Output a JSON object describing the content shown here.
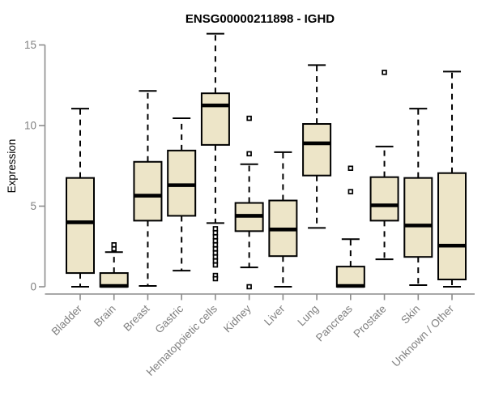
{
  "colors": {
    "box_fill": "#EDE5C8",
    "box_border": "#000000",
    "median": "#000000",
    "whisker": "#000000",
    "outlier": "#000000",
    "axis_line": "#8C8C8C",
    "axis_text": "#808080",
    "title_text": "#000000",
    "background": "#FFFFFF"
  },
  "chart_data": {
    "type": "boxplot",
    "title": "ENSG00000211898 - IGHD",
    "xlabel": "",
    "ylabel": "Expression",
    "ylim": [
      0,
      15
    ],
    "yticks": [
      0,
      5,
      10,
      15
    ],
    "grid": false,
    "legend": "none",
    "categories": [
      "Bladder",
      "Brain",
      "Breast",
      "Gastric",
      "Hematopoietic cells",
      "Kidney",
      "Liver",
      "Lung",
      "Pancreas",
      "Prostate",
      "Skin",
      "Unknown / Other"
    ],
    "boxes": [
      {
        "category": "Bladder",
        "whisker_low": 0,
        "q1": 0.85,
        "median": 4.0,
        "q3": 6.75,
        "whisker_high": 11.05,
        "outliers": []
      },
      {
        "category": "Brain",
        "whisker_low": 0,
        "q1": 0,
        "median": 0.05,
        "q3": 0.85,
        "whisker_high": 2.15,
        "outliers": [
          2.35,
          2.6
        ]
      },
      {
        "category": "Breast",
        "whisker_low": 0.05,
        "q1": 4.1,
        "median": 5.65,
        "q3": 7.75,
        "whisker_high": 12.15,
        "outliers": []
      },
      {
        "category": "Gastric",
        "whisker_low": 1.0,
        "q1": 4.4,
        "median": 6.3,
        "q3": 8.45,
        "whisker_high": 10.45,
        "outliers": []
      },
      {
        "category": "Hematopoietic cells",
        "whisker_low": 3.95,
        "q1": 8.8,
        "median": 11.25,
        "q3": 12.0,
        "whisker_high": 15.7,
        "outliers": [
          3.6,
          3.35,
          3.1,
          2.85,
          2.6,
          2.35,
          2.1,
          1.85,
          1.6,
          1.35,
          0.7,
          0.5
        ]
      },
      {
        "category": "Kidney",
        "whisker_low": 1.2,
        "q1": 3.45,
        "median": 4.4,
        "q3": 5.2,
        "whisker_high": 7.6,
        "outliers": [
          10.45,
          8.25,
          0.0
        ]
      },
      {
        "category": "Liver",
        "whisker_low": 0,
        "q1": 1.9,
        "median": 3.55,
        "q3": 5.35,
        "whisker_high": 8.35,
        "outliers": []
      },
      {
        "category": "Lung",
        "whisker_low": 3.65,
        "q1": 6.9,
        "median": 8.9,
        "q3": 10.1,
        "whisker_high": 13.75,
        "outliers": []
      },
      {
        "category": "Pancreas",
        "whisker_low": 0,
        "q1": 0,
        "median": 0.05,
        "q3": 1.25,
        "whisker_high": 2.95,
        "outliers": [
          5.9,
          7.35
        ]
      },
      {
        "category": "Prostate",
        "whisker_low": 1.7,
        "q1": 4.1,
        "median": 5.05,
        "q3": 6.8,
        "whisker_high": 8.7,
        "outliers": [
          13.3
        ]
      },
      {
        "category": "Skin",
        "whisker_low": 0.1,
        "q1": 1.85,
        "median": 3.8,
        "q3": 6.75,
        "whisker_high": 11.05,
        "outliers": []
      },
      {
        "category": "Unknown / Other",
        "whisker_low": 0,
        "q1": 0.45,
        "median": 2.55,
        "q3": 7.05,
        "whisker_high": 13.35,
        "outliers": []
      }
    ]
  }
}
